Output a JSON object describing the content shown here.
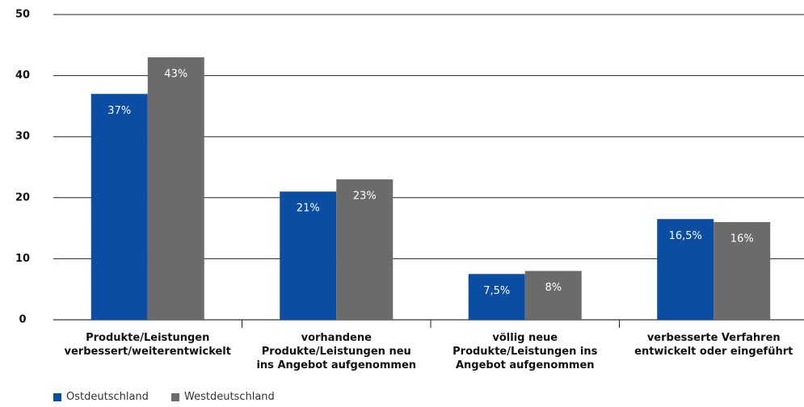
{
  "chart_data": {
    "type": "bar",
    "categories": [
      "Produkte/Leistungen\nverbessert/weiterentwickelt",
      "vorhandene\nProdukte/Leistungen neu\nins Angebot aufgenommen",
      "völlig neue\nProdukte/Leistungen ins\nAngebot aufgenommen",
      "verbesserte Verfahren\nentwickelt oder eingeführt"
    ],
    "series": [
      {
        "name": "Ostdeutschland",
        "color": "#0a4da2",
        "values": [
          37,
          21,
          7.5,
          16.5
        ],
        "value_labels": [
          "37%",
          "21%",
          "7,5%",
          "16,5%"
        ]
      },
      {
        "name": "Westdeutschland",
        "color": "#6b6b6b",
        "values": [
          43,
          23,
          8,
          16
        ],
        "value_labels": [
          "43%",
          "23%",
          "8%",
          "16%"
        ]
      }
    ],
    "ylim": [
      0,
      50
    ],
    "yticks": [
      0,
      10,
      20,
      30,
      40,
      50
    ],
    "grid": true,
    "legend": "bottom-left"
  }
}
